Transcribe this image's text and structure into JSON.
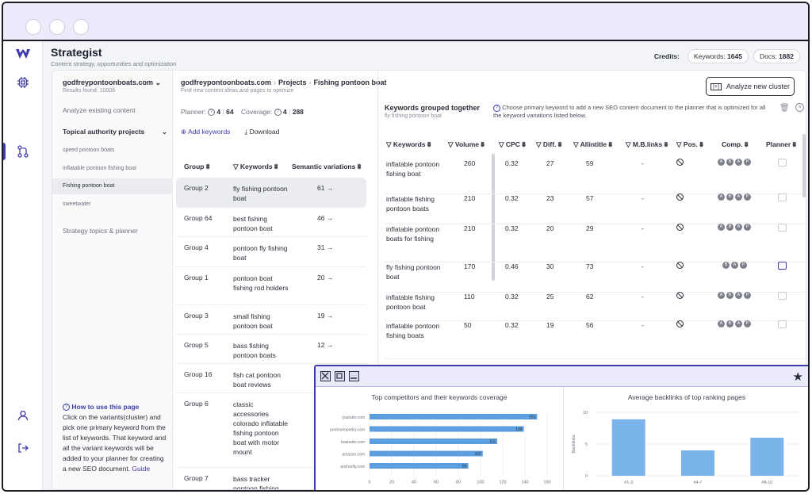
{
  "app": {
    "title": "Strategist",
    "subtitle": "Content strategy, opportunities and optimization"
  },
  "credits": {
    "label": "Credits:",
    "keywords_label": "Keywords:",
    "keywords_value": "1645",
    "docs_label": "Docs:",
    "docs_value": "1882"
  },
  "sidebar": {
    "project": "godfreypontoonboats.com",
    "results": "Results found: 10006",
    "analyze": "Analyze existing content",
    "topical": "Topical authority projects",
    "items": [
      "speed pontoon boats",
      "inflatable pontoon fishing boat",
      "Fishing pontoon boat",
      "sweetwater"
    ],
    "strategy": "Strategy topics & planner",
    "help_title": "How to use this page",
    "help_text": "Click on the variants(cluster) and pick one primary keyword from the list of keywords. That keyword and all the variant keywords will be added to your planner for creating a new SEO document.",
    "help_link": "Guide"
  },
  "breadcrumb": {
    "domain": "godfreypontoonboats.com",
    "projects": "Projects",
    "current": "Fishing pontoon boat",
    "sub": "Find new content ideas and pages to optimize"
  },
  "stats": {
    "planner_label": "Planner:",
    "planner_a": "4",
    "planner_b": "64",
    "coverage_label": "Coverage:",
    "coverage_a": "4",
    "coverage_b": "288"
  },
  "actions": {
    "add": "Add keywords",
    "download": "Download"
  },
  "groups": {
    "headers": {
      "group": "Group",
      "keywords": "Keywords",
      "semantic": "Semantic variations"
    },
    "rows": [
      {
        "group": "Group 2",
        "keywords": "fly fishing pontoon boat",
        "count": "61"
      },
      {
        "group": "Group 64",
        "keywords": "best fishing pontoon boat",
        "count": "46"
      },
      {
        "group": "Group 4",
        "keywords": "pontoon fly fishing boat",
        "count": "31"
      },
      {
        "group": "Group 1",
        "keywords": "pontoon boat fishing rod holders",
        "count": "20"
      },
      {
        "group": "Group 3",
        "keywords": "small fishing pontoon boat",
        "count": "19"
      },
      {
        "group": "Group 5",
        "keywords": "bass fishing pontoon boats",
        "count": "12"
      },
      {
        "group": "Group 16",
        "keywords": "fish cat pontoon boat reviews",
        "count": ""
      },
      {
        "group": "Group 6",
        "keywords": "classic accessories colorado inflatable fishing pontoon boat with motor mount",
        "count": ""
      },
      {
        "group": "Group 7",
        "keywords": "bass tracker pontoon fishing boat",
        "count": ""
      }
    ]
  },
  "keywords_panel": {
    "title": "Keywords grouped together",
    "sub": "fly fishing pontoon boat",
    "desc": "Choose primary keyword to add a new SEO content document to the planner that is optimized for all the keyword variations listed below.",
    "analyze_button": "Analyze new cluster",
    "headers": {
      "keywords": "Keywords",
      "volume": "Volume",
      "cpc": "CPC",
      "diff": "Diff.",
      "allintitle": "Allintitle",
      "mb": "M.B.links",
      "pos": "Pos.",
      "comp": "Comp.",
      "planner": "Planner"
    },
    "rows": [
      {
        "kw": "inflatable pontoon fishing boat",
        "volume": "260",
        "cpc": "0.32",
        "diff": "27",
        "allintitle": "59",
        "mb": "-",
        "comp": [
          "A",
          "B",
          "A",
          "P"
        ]
      },
      {
        "kw": "inflatable fishing pontoon boats",
        "volume": "210",
        "cpc": "0.32",
        "diff": "23",
        "allintitle": "57",
        "mb": "-",
        "comp": [
          "A",
          "B",
          "A",
          "P"
        ]
      },
      {
        "kw": "inflatable pontoon boats for fishing",
        "volume": "210",
        "cpc": "0.32",
        "diff": "20",
        "allintitle": "29",
        "mb": "-",
        "comp": [
          "A",
          "B",
          "A",
          "P"
        ]
      },
      {
        "kw": "fly fishing pontoon boat",
        "volume": "170",
        "cpc": "0.46",
        "diff": "30",
        "allintitle": "73",
        "mb": "-",
        "comp": [
          "B",
          "A",
          "P"
        ]
      },
      {
        "kw": "inflatable fishing pontoon boat",
        "volume": "110",
        "cpc": "0.32",
        "diff": "25",
        "allintitle": "62",
        "mb": "-",
        "comp": [
          "A",
          "B",
          "A",
          "P"
        ]
      },
      {
        "kw": "inflatable pontoon fishing boats",
        "volume": "50",
        "cpc": "0.32",
        "diff": "19",
        "allintitle": "56",
        "mb": "-",
        "comp": [
          "A",
          "B",
          "A",
          "P"
        ]
      }
    ]
  },
  "chart_data": [
    {
      "type": "bar",
      "orientation": "horizontal",
      "title": "Top competitors and their keywords coverage",
      "categories": [
        "youtube.com",
        "pontoonopedia.com",
        "boatsafe.com",
        "amazon.com",
        "anchorfly.com"
      ],
      "values": [
        151,
        139,
        115,
        102,
        89
      ],
      "xlim": [
        0,
        160
      ],
      "xticks": [
        0,
        20,
        40,
        60,
        80,
        100,
        120,
        140,
        160
      ],
      "color": "#5b9fe0"
    },
    {
      "type": "bar",
      "title": "Average backlinks of top ranking pages",
      "ylabel": "Backlinks",
      "categories": [
        "#1-3",
        "#4-7",
        "#8-10"
      ],
      "values": [
        8.9,
        4,
        6
      ],
      "ylim": [
        0,
        10
      ],
      "yticks": [
        0,
        5,
        10
      ],
      "color": "#7ab4ea"
    }
  ]
}
